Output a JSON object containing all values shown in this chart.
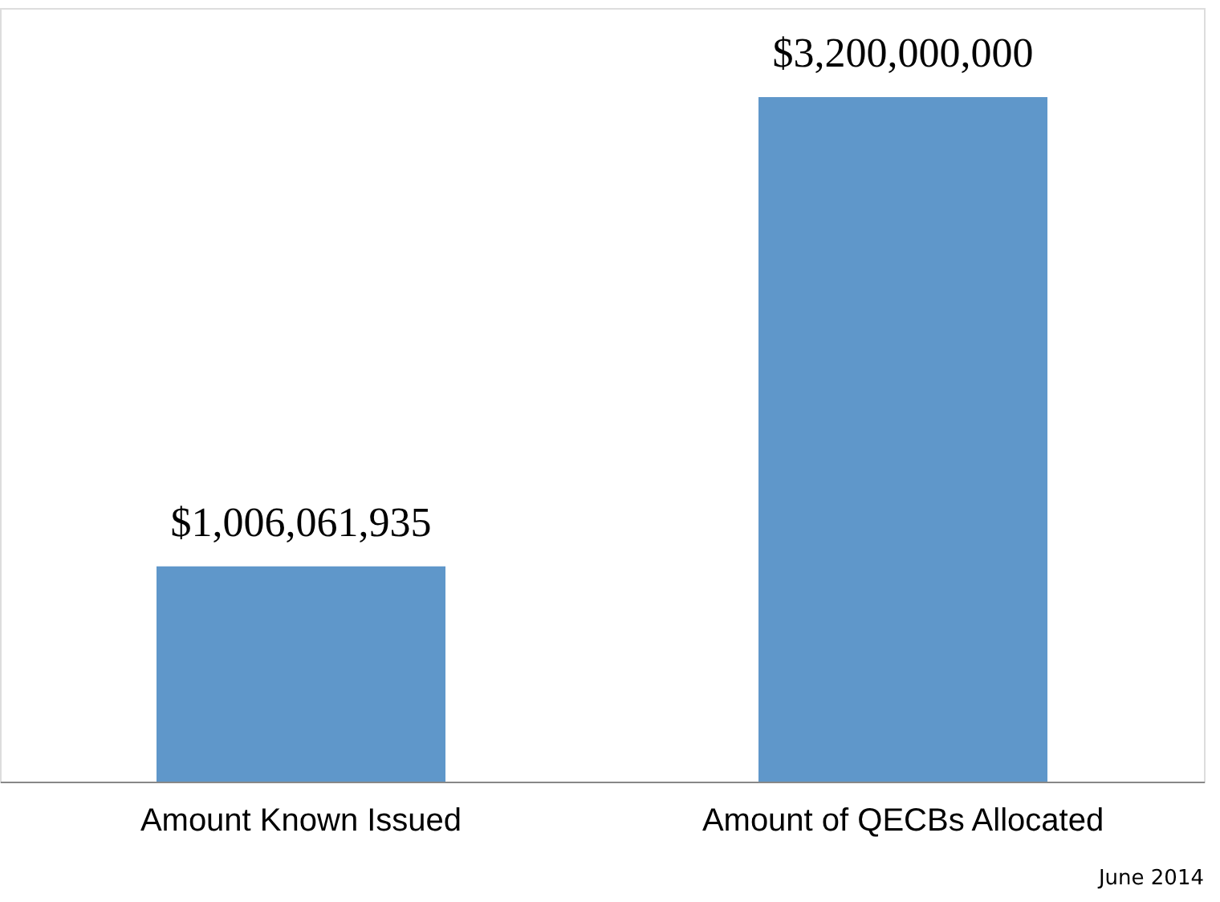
{
  "chart_data": {
    "type": "bar",
    "categories": [
      "Amount Known Issued",
      "Amount of QECBs Allocated"
    ],
    "values": [
      1006061935,
      3200000000
    ],
    "value_labels": [
      "$1,006,061,935",
      "$3,200,000,000"
    ],
    "color": "#5f97ca",
    "grid": false,
    "annotations": [
      "June 2014"
    ]
  }
}
